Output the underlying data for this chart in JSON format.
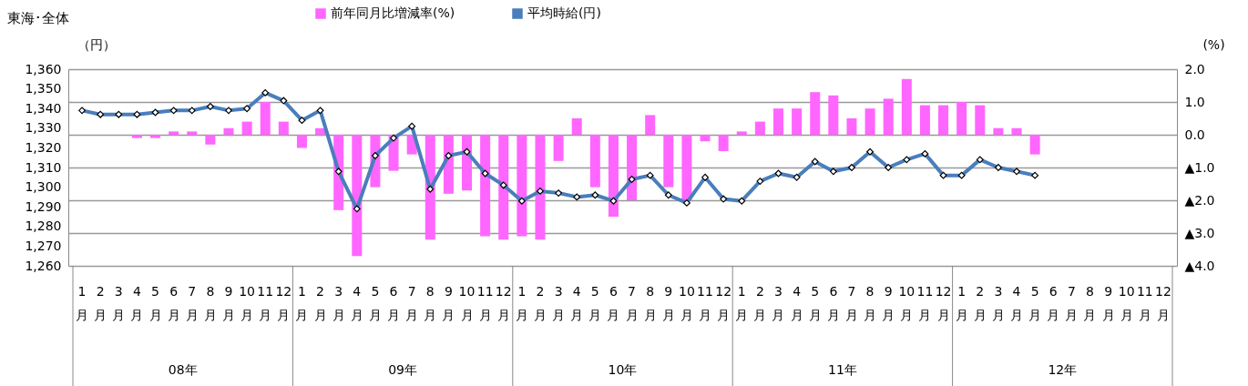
{
  "chart_data": {
    "type": "bar",
    "title": "東海･全体",
    "categories": [
      "1月",
      "2月",
      "3月",
      "4月",
      "5月",
      "6月",
      "7月",
      "8月",
      "9月",
      "10月",
      "11月",
      "12月",
      "1月",
      "2月",
      "3月",
      "4月",
      "5月",
      "6月",
      "7月",
      "8月",
      "9月",
      "10月",
      "11月",
      "12月",
      "1月",
      "2月",
      "3月",
      "4月",
      "5月",
      "6月",
      "7月",
      "8月",
      "9月",
      "10月",
      "11月",
      "12月",
      "1月",
      "2月",
      "3月",
      "4月",
      "5月",
      "6月",
      "7月",
      "8月",
      "9月",
      "10月",
      "11月",
      "12月",
      "1月",
      "2月",
      "3月",
      "4月",
      "5月",
      "6月",
      "7月",
      "8月",
      "9月",
      "10月",
      "11月",
      "12月"
    ],
    "annotations": [
      "08年",
      "09年",
      "10年",
      "11年",
      "12年"
    ],
    "ylabel": "（円）",
    "y2label": "(%)",
    "series": [
      {
        "name": "前年同月比増減率(%)",
        "axis": "y2",
        "color": "#ff66ff",
        "values": [
          null,
          null,
          null,
          -0.1,
          -0.1,
          0.1,
          0.1,
          -0.3,
          0.2,
          0.4,
          1.0,
          0.4,
          -0.4,
          0.2,
          -2.3,
          -3.7,
          -1.6,
          -1.1,
          -0.6,
          -3.2,
          -1.8,
          -1.7,
          -3.1,
          -3.2,
          -3.1,
          -3.2,
          -0.8,
          0.5,
          -1.6,
          -2.5,
          -2.0,
          0.6,
          -1.6,
          -2.0,
          -0.2,
          -0.5,
          0.1,
          0.4,
          0.8,
          0.8,
          1.3,
          1.2,
          0.5,
          0.8,
          1.1,
          1.7,
          0.9,
          0.9,
          1.0,
          0.9,
          0.2,
          0.2,
          -0.6,
          null,
          null,
          null,
          null,
          null,
          null,
          null
        ]
      },
      {
        "name": "平均時給(円)",
        "type": "line",
        "axis": "y",
        "color": "#4a7ebb",
        "marker": "diamond",
        "values": [
          1339,
          1337,
          1337,
          1337,
          1338,
          1339,
          1339,
          1341,
          1339,
          1340,
          1348,
          1344,
          1334,
          1339,
          1308,
          1289,
          1316,
          1325,
          1331,
          1299,
          1316,
          1318,
          1307,
          1301,
          1293,
          1298,
          1297,
          1295,
          1296,
          1293,
          1304,
          1306,
          1296,
          1292,
          1305,
          1294,
          1293,
          1303,
          1307,
          1305,
          1313,
          1308,
          1310,
          1318,
          1310,
          1314,
          1317,
          1306,
          1306,
          1314,
          1310,
          1308,
          1306,
          null,
          null,
          null,
          null,
          null,
          null,
          null
        ]
      }
    ],
    "ylim": [
      1260,
      1360
    ],
    "yticks": [
      {
        "value": 1260,
        "label": "1,260"
      },
      {
        "value": 1270,
        "label": "1,270"
      },
      {
        "value": 1280,
        "label": "1,280"
      },
      {
        "value": 1290,
        "label": "1,290"
      },
      {
        "value": 1300,
        "label": "1,300"
      },
      {
        "value": 1310,
        "label": "1,310"
      },
      {
        "value": 1320,
        "label": "1,320"
      },
      {
        "value": 1330,
        "label": "1,330"
      },
      {
        "value": 1340,
        "label": "1,340"
      },
      {
        "value": 1350,
        "label": "1,350"
      },
      {
        "value": 1360,
        "label": "1,360"
      }
    ],
    "y2lim": [
      -4,
      2
    ],
    "y2ticks": [
      {
        "value": 2,
        "label": "2.0"
      },
      {
        "value": 1,
        "label": "1.0"
      },
      {
        "value": 0,
        "label": "0.0"
      },
      {
        "value": -1,
        "label": "▲1.0"
      },
      {
        "value": -2,
        "label": "▲2.0"
      },
      {
        "value": -3,
        "label": "▲3.0"
      },
      {
        "value": -4,
        "label": "▲4.0"
      }
    ],
    "grid": "y2",
    "legend": "top"
  }
}
